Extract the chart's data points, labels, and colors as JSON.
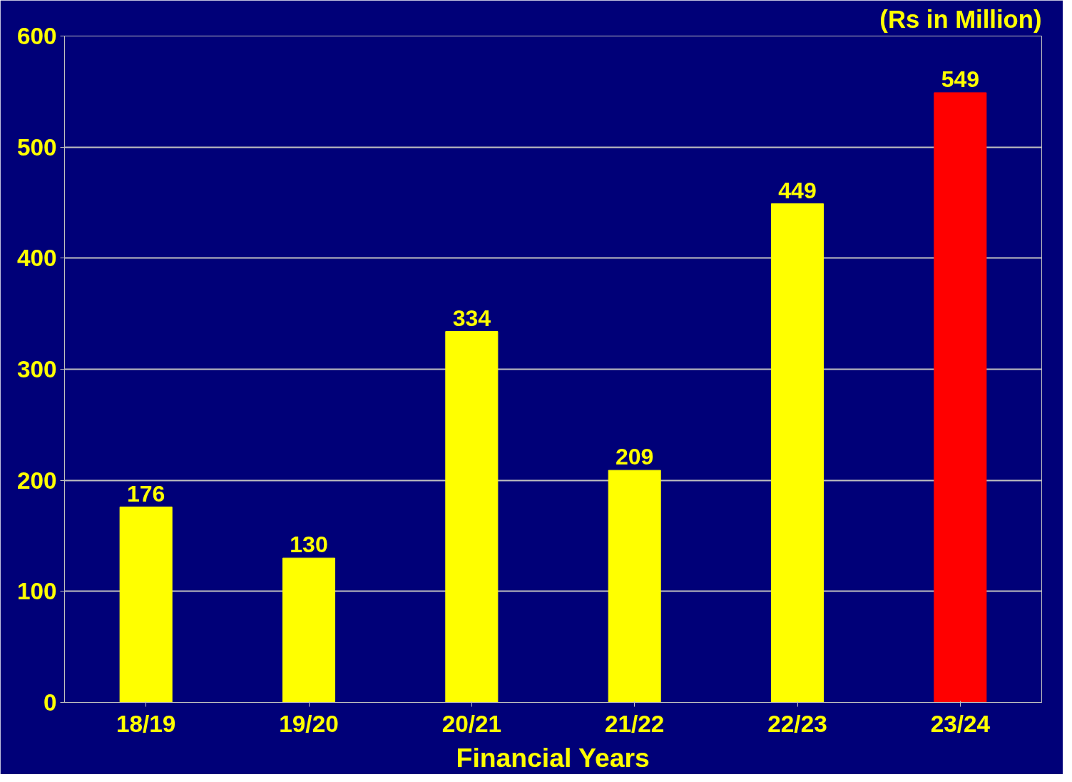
{
  "chart_data": {
    "type": "bar",
    "title": "(Rs in Million)",
    "xlabel": "Financial Years",
    "categories": [
      "18/19",
      "19/20",
      "20/21",
      "21/22",
      "22/23",
      "23/24"
    ],
    "values": [
      176,
      130,
      334,
      209,
      449,
      549
    ],
    "colors": [
      "#ffff00",
      "#ffff00",
      "#ffff00",
      "#ffff00",
      "#ffff00",
      "#ff0000"
    ],
    "ylim": [
      0,
      600
    ],
    "yticks": [
      0,
      100,
      200,
      300,
      400,
      500,
      600
    ],
    "grid": "y",
    "data_labels": true
  }
}
